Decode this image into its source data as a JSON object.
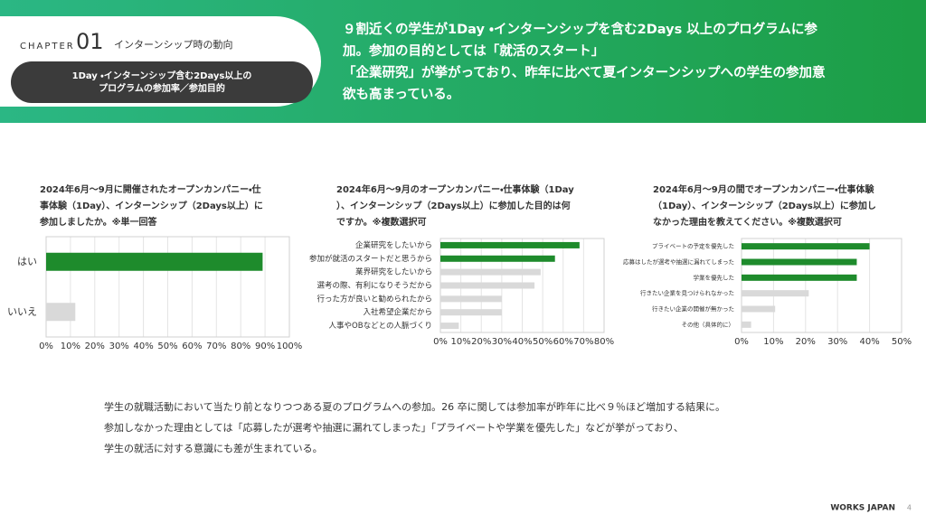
{
  "header": {
    "chapter_label": "CHAPTER",
    "chapter_number": "01",
    "chapter_title": "インターンシップ時の動向",
    "subtitle_lines": [
      "1Day ・インターンシップ含む2Days以上の",
      "プログラムの参加率／参加目的"
    ],
    "headline_lines": [
      "９割近くの学生が1Day ・インターンシップを含む2Days 以上のプログラムに参",
      "加。参加の目的としては「就活のスタート」",
      "「企業研究」が挙がっており、昨年に比べて夏インターンシップへの学生の参加意",
      "欲も高まっている。"
    ]
  },
  "chart_data": [
    {
      "type": "bar",
      "orientation": "horizontal",
      "question_lines": [
        "2024年6月～9月に開催されたオープンカンパニー・仕",
        "事体験（1Day）、インターンシップ（2Days以上）に",
        "参加しましたか。※単一回答"
      ],
      "categories": [
        "はい",
        "いいえ"
      ],
      "values": [
        89,
        12
      ],
      "colors": [
        "#1e8b2c",
        "#d9d9d9"
      ],
      "xlim": [
        0,
        100
      ],
      "xticks": [
        {
          "value": 0,
          "label": "0%"
        },
        {
          "value": 10,
          "label": "10%"
        },
        {
          "value": 20,
          "label": "20%"
        },
        {
          "value": 30,
          "label": "30%"
        },
        {
          "value": 40,
          "label": "40%"
        },
        {
          "value": 50,
          "label": "50%"
        },
        {
          "value": 60,
          "label": "60%"
        },
        {
          "value": 70,
          "label": "70%"
        },
        {
          "value": 80,
          "label": "80%"
        },
        {
          "value": 90,
          "label": "90%"
        },
        {
          "value": 100,
          "label": "100%"
        }
      ],
      "grid": true
    },
    {
      "type": "bar",
      "orientation": "horizontal",
      "question_lines": [
        "2024年6月～9月のオープンカンパニー・仕事体験（1Day",
        "）、インターンシップ（2Days以上）に参加した目的は何",
        "ですか。※複数選択可"
      ],
      "categories": [
        "企業研究をしたいから",
        "参加が就活のスタートだと思うから",
        "業界研究をしたいから",
        "選考の際、有利になりそうだから",
        "行った方が良いと勧められたから",
        "入社希望企業だから",
        "人事やOBなどとの人脈づくり"
      ],
      "values": [
        68,
        56,
        49,
        46,
        30,
        30,
        9
      ],
      "colors": [
        "#1e8b2c",
        "#1e8b2c",
        "#d9d9d9",
        "#d9d9d9",
        "#d9d9d9",
        "#d9d9d9",
        "#d9d9d9"
      ],
      "xlim": [
        0,
        80
      ],
      "xticks": [
        {
          "value": 0,
          "label": "0%"
        },
        {
          "value": 10,
          "label": "10%"
        },
        {
          "value": 20,
          "label": "20%"
        },
        {
          "value": 30,
          "label": "30%"
        },
        {
          "value": 40,
          "label": "40%"
        },
        {
          "value": 50,
          "label": "50%"
        },
        {
          "value": 60,
          "label": "60%"
        },
        {
          "value": 70,
          "label": "70%"
        },
        {
          "value": 80,
          "label": "80%"
        }
      ],
      "grid": true
    },
    {
      "type": "bar",
      "orientation": "horizontal",
      "question_lines": [
        "2024年6月～9月の間でオープンカンパニー・仕事体験",
        "（1Day）、インターンシップ（2Days以上）に参加し",
        "なかった理由を教えてください。※複数選択可"
      ],
      "categories": [
        "プライベートの予定を優先した",
        "応募はしたが選考や抽選に漏れてしまった",
        "学業を優先した",
        "行きたい企業を見つけられなかった",
        "行きたい企業の開催が無かった",
        "その他（具体的に）"
      ],
      "values": [
        40,
        36,
        36,
        21,
        10.5,
        3
      ],
      "colors": [
        "#1e8b2c",
        "#1e8b2c",
        "#1e8b2c",
        "#d9d9d9",
        "#d9d9d9",
        "#d9d9d9"
      ],
      "xlim": [
        0,
        50
      ],
      "xticks": [
        {
          "value": 0,
          "label": "0%"
        },
        {
          "value": 10,
          "label": "10%"
        },
        {
          "value": 20,
          "label": "20%"
        },
        {
          "value": 30,
          "label": "30%"
        },
        {
          "value": 40,
          "label": "40%"
        },
        {
          "value": 50,
          "label": "50%"
        }
      ],
      "grid": true
    }
  ],
  "summary_lines": [
    "学生の就職活動において当たり前となりつつある夏のプログラムへの参加。26 卒に関しては参加率が昨年に比べ９％ほど増加する結果に。",
    "参加しなかった理由としては「応募したが選考や抽選に漏れてしまった」「プライベートや学業を優先した」などが挙がっており、",
    "学生の就活に対する意識にも差が生まれている。"
  ],
  "footer": {
    "logo": "WORKS JAPAN",
    "page": 4
  }
}
